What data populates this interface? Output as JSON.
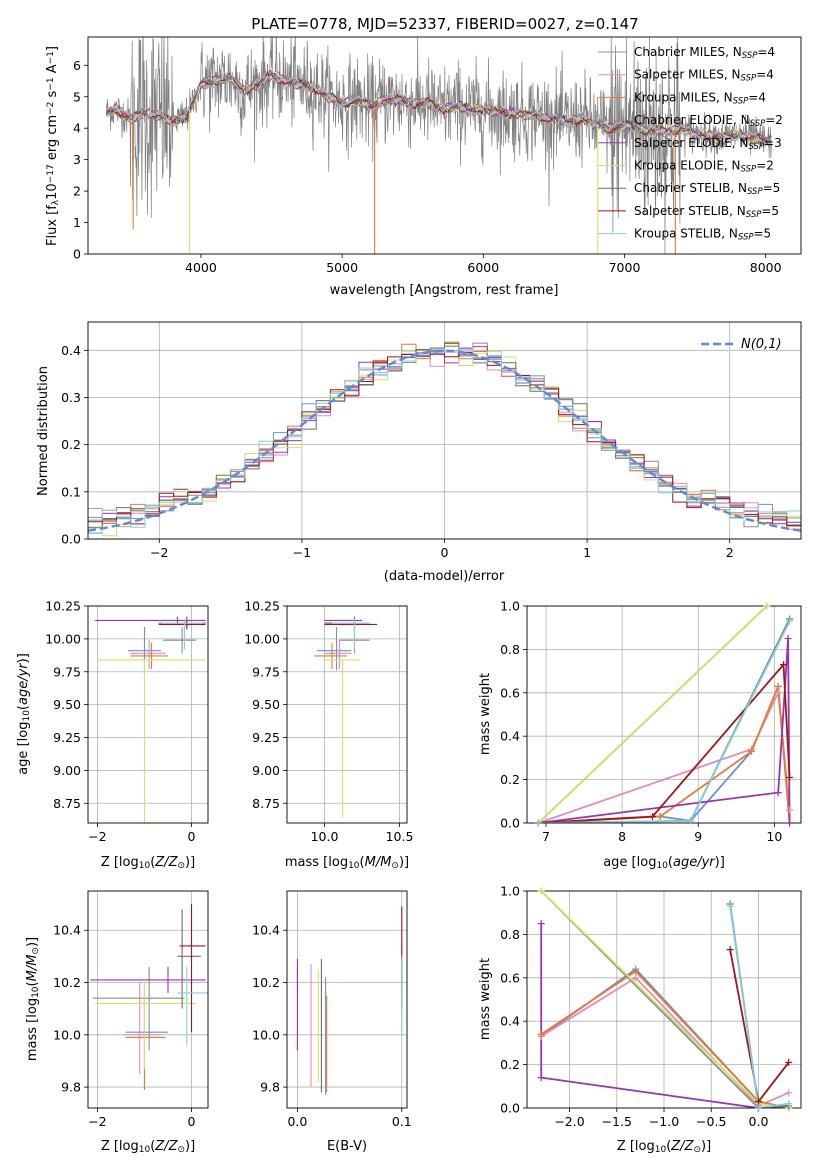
{
  "figure": {
    "title": "PLATE=0778, MJD=52337, FIBERID=0027, z=0.147"
  },
  "colors": {
    "Chabrier MILES": "#6a8fd8",
    "Salpeter MILES": "#e58aba",
    "Kroupa MILES": "#e67c2e",
    "Chabrier ELODIE": "#8c8c8c",
    "Salpeter ELODIE": "#9a33b3",
    "Kroupa ELODIE": "#c8e66a",
    "Chabrier STELIB": "#6e6e6e",
    "Salpeter STELIB": "#a11515",
    "Kroupa STELIB": "#7fd0dc",
    "data": "#808080",
    "normal": "#5b8ad6"
  },
  "chart_data": [
    {
      "type": "line",
      "panel": "spectrum",
      "title": "PLATE=0778, MJD=52337, FIBERID=0027, z=0.147",
      "xlabel": "wavelength [Angstrom, rest frame]",
      "ylabel": "Flux [f_λ10^-17 erg cm^-2 s^-1 A^-1]",
      "xlim": [
        3200,
        8250
      ],
      "ylim": [
        0,
        6.9
      ],
      "xticks": [
        4000,
        5000,
        6000,
        7000,
        8000
      ],
      "yticks": [
        0,
        1,
        2,
        3,
        4,
        5,
        6
      ],
      "legend": "right",
      "legend_entries": [
        {
          "model": "Chabrier MILES",
          "base": "Chabrier MILES, N",
          "sub": "SSP",
          "suffix": "=4"
        },
        {
          "model": "Salpeter MILES",
          "base": "Salpeter MILES, N",
          "sub": "SSP",
          "suffix": "=4"
        },
        {
          "model": "Kroupa MILES",
          "base": "Kroupa MILES, N",
          "sub": "SSP",
          "suffix": "=4"
        },
        {
          "model": "Chabrier ELODIE",
          "base": "Chabrier ELODIE, N",
          "sub": "SSP",
          "suffix": "=2"
        },
        {
          "model": "Salpeter ELODIE",
          "base": "Salpeter ELODIE, N",
          "sub": "SSP",
          "suffix": "=3"
        },
        {
          "model": "Kroupa ELODIE",
          "base": "Kroupa ELODIE, N",
          "sub": "SSP",
          "suffix": "=2"
        },
        {
          "model": "Chabrier STELIB",
          "base": "Chabrier STELIB, N",
          "sub": "SSP",
          "suffix": "=5"
        },
        {
          "model": "Salpeter STELIB",
          "base": "Salpeter STELIB, N",
          "sub": "SSP",
          "suffix": "=5"
        },
        {
          "model": "Kroupa STELIB",
          "base": "Kroupa STELIB, N",
          "sub": "SSP",
          "suffix": "=5"
        }
      ],
      "model_curve": {
        "x": [
          3330,
          3400,
          3500,
          3600,
          3700,
          3800,
          3900,
          4000,
          4100,
          4200,
          4300,
          4400,
          4500,
          4600,
          4700,
          4800,
          4900,
          5000,
          5100,
          5200,
          5300,
          5400,
          5500,
          5600,
          5700,
          5800,
          5900,
          6000,
          6100,
          6200,
          6300,
          6400,
          6500,
          6600,
          6700,
          6800,
          6900,
          7000,
          7100,
          7200,
          7300,
          7400,
          7500,
          7600,
          7700,
          7800,
          7900,
          8000
        ],
        "y": [
          4.5,
          4.6,
          4.3,
          4.5,
          4.4,
          4.2,
          4.4,
          5.4,
          5.5,
          5.6,
          5.2,
          5.4,
          5.7,
          5.5,
          5.4,
          5.3,
          5.0,
          4.8,
          4.9,
          4.7,
          4.9,
          4.9,
          4.8,
          4.8,
          4.6,
          4.7,
          4.6,
          4.6,
          4.5,
          4.5,
          4.4,
          4.4,
          4.3,
          4.2,
          4.3,
          4.1,
          4.0,
          4.1,
          4.0,
          3.9,
          3.9,
          4.0,
          3.8,
          3.8,
          3.7,
          3.8,
          3.7,
          3.6
        ]
      },
      "dips": [
        {
          "x": 3520,
          "y": 0.8,
          "model": "Kroupa MILES"
        },
        {
          "x": 3920,
          "y": 0.0,
          "model": "Kroupa ELODIE"
        },
        {
          "x": 5230,
          "y": 0.0,
          "model": "Kroupa MILES"
        },
        {
          "x": 6810,
          "y": 0.0,
          "model": "Kroupa ELODIE"
        },
        {
          "x": 7360,
          "y": 0.0,
          "model": "Kroupa MILES"
        }
      ]
    },
    {
      "type": "line",
      "panel": "residual-distribution",
      "xlabel": "(data-model)/error",
      "ylabel": "Normed distribution",
      "xlim": [
        -2.5,
        2.5
      ],
      "ylim": [
        0,
        0.46
      ],
      "xticks": [
        -2,
        -1,
        0,
        1,
        2
      ],
      "yticks": [
        0.0,
        0.1,
        0.2,
        0.3,
        0.4
      ],
      "legend": "top-right",
      "normal_label": "N(0,1)",
      "bin_width": 0.1,
      "reference_curve": "standard normal density"
    },
    {
      "type": "scatter",
      "panel": "age-vs-Z",
      "xlabel": "Z [log10(Z/Z⊙)]",
      "ylabel": "age [log10(age/yr)]",
      "xlim": [
        -2.2,
        0.35
      ],
      "ylim": [
        8.6,
        10.25
      ],
      "xticks": [
        -2,
        0
      ],
      "yticks": [
        8.75,
        9.0,
        9.25,
        9.5,
        9.75,
        10.0,
        10.25
      ],
      "points": [
        {
          "model": "Chabrier MILES",
          "x": -1.0,
          "y": 9.91,
          "xerr": [
            0.35,
            0.35
          ],
          "yerr": [
            0.15,
            0.18
          ]
        },
        {
          "model": "Salpeter MILES",
          "x": -0.9,
          "y": 9.89,
          "xerr": [
            0.4,
            0.35
          ],
          "yerr": [
            0.12,
            0.1
          ]
        },
        {
          "model": "Kroupa MILES",
          "x": -0.85,
          "y": 9.87,
          "xerr": [
            0.45,
            0.35
          ],
          "yerr": [
            0.1,
            0.1
          ]
        },
        {
          "model": "Chabrier ELODIE",
          "x": -0.2,
          "y": 9.99,
          "xerr": [
            0.4,
            0.3
          ],
          "yerr": [
            0.1,
            0.1
          ]
        },
        {
          "model": "Salpeter ELODIE",
          "x": -0.3,
          "y": 10.14,
          "xerr": [
            1.75,
            0.6
          ],
          "yerr": [
            0.03,
            0.03
          ]
        },
        {
          "model": "Kroupa ELODIE",
          "x": -1.0,
          "y": 9.84,
          "xerr": [
            1.0,
            1.3
          ],
          "yerr": [
            1.25,
            0.0
          ]
        },
        {
          "model": "Chabrier STELIB",
          "x": -0.1,
          "y": 10.12,
          "xerr": [
            0.6,
            0.4
          ],
          "yerr": [
            0.05,
            0.05
          ]
        },
        {
          "model": "Salpeter STELIB",
          "x": -0.1,
          "y": 10.11,
          "xerr": [
            0.6,
            0.4
          ],
          "yerr": [
            0.03,
            0.03
          ]
        },
        {
          "model": "Kroupa STELIB",
          "x": -0.15,
          "y": 10.12,
          "xerr": [
            0.5,
            0.4
          ],
          "yerr": [
            0.2,
            0.03
          ]
        }
      ]
    },
    {
      "type": "scatter",
      "panel": "age-vs-mass",
      "xlabel": "mass [log10(M/M⊙)]",
      "ylabel": "",
      "xlim": [
        9.75,
        10.55
      ],
      "ylim": [
        8.6,
        10.25
      ],
      "xticks": [
        10.0,
        10.5
      ],
      "yticks": [
        8.75,
        9.0,
        9.25,
        9.5,
        9.75,
        10.0,
        10.25
      ],
      "points": [
        {
          "model": "Chabrier MILES",
          "x": 10.08,
          "y": 9.91,
          "xerr": [
            0.13,
            0.1
          ],
          "yerr": [
            0.15,
            0.18
          ]
        },
        {
          "model": "Salpeter MILES",
          "x": 10.1,
          "y": 9.89,
          "xerr": [
            0.1,
            0.08
          ],
          "yerr": [
            0.12,
            0.1
          ]
        },
        {
          "model": "Kroupa MILES",
          "x": 10.05,
          "y": 9.87,
          "xerr": [
            0.12,
            0.1
          ],
          "yerr": [
            0.1,
            0.1
          ]
        },
        {
          "model": "Chabrier ELODIE",
          "x": 10.2,
          "y": 9.99,
          "xerr": [
            0.1,
            0.1
          ],
          "yerr": [
            0.1,
            0.1
          ]
        },
        {
          "model": "Salpeter ELODIE",
          "x": 10.2,
          "y": 10.14,
          "xerr": [
            0.2,
            0.05
          ],
          "yerr": [
            0.03,
            0.03
          ]
        },
        {
          "model": "Kroupa ELODIE",
          "x": 10.12,
          "y": 9.84,
          "xerr": [
            0.12,
            0.12
          ],
          "yerr": [
            1.2,
            0.0
          ]
        },
        {
          "model": "Chabrier STELIB",
          "x": 10.2,
          "y": 10.12,
          "xerr": [
            0.2,
            0.1
          ],
          "yerr": [
            0.05,
            0.05
          ]
        },
        {
          "model": "Salpeter STELIB",
          "x": 10.2,
          "y": 10.11,
          "xerr": [
            0.2,
            0.15
          ],
          "yerr": [
            0.03,
            0.03
          ]
        },
        {
          "model": "Kroupa STELIB",
          "x": 10.2,
          "y": 10.12,
          "xerr": [
            0.15,
            0.1
          ],
          "yerr": [
            0.2,
            0.03
          ]
        }
      ]
    },
    {
      "type": "line",
      "panel": "mass-weight-vs-age",
      "xlabel": "age [log10(age/yr)]",
      "ylabel": "mass weight",
      "xlim": [
        6.75,
        10.35
      ],
      "ylim": [
        0,
        1.0
      ],
      "xticks": [
        7,
        8,
        9,
        10
      ],
      "yticks": [
        0.0,
        0.2,
        0.4,
        0.6,
        0.8,
        1.0
      ],
      "series": [
        {
          "model": "Chabrier MILES",
          "x": [
            6.9,
            8.5,
            8.9,
            9.7,
            10.05,
            10.2
          ],
          "y": [
            0.0,
            0.03,
            0.01,
            0.33,
            0.63,
            0.0
          ]
        },
        {
          "model": "Salpeter MILES",
          "x": [
            6.9,
            9.7,
            10.05,
            10.2
          ],
          "y": [
            0.0,
            0.34,
            0.6,
            0.06
          ]
        },
        {
          "model": "Kroupa MILES",
          "x": [
            6.9,
            8.5,
            9.7,
            10.05,
            10.2
          ],
          "y": [
            0.0,
            0.03,
            0.33,
            0.63,
            0.0
          ]
        },
        {
          "model": "Chabrier ELODIE",
          "x": [
            6.9,
            9.9
          ],
          "y": [
            0.0,
            1.0
          ]
        },
        {
          "model": "Salpeter ELODIE",
          "x": [
            6.9,
            10.05,
            10.18,
            10.2
          ],
          "y": [
            0.0,
            0.14,
            0.85,
            0.0
          ]
        },
        {
          "model": "Kroupa ELODIE",
          "x": [
            6.9,
            9.9
          ],
          "y": [
            0.0,
            1.0
          ]
        },
        {
          "model": "Chabrier STELIB",
          "x": [
            6.9,
            8.9,
            10.2
          ],
          "y": [
            0.0,
            0.01,
            0.94
          ]
        },
        {
          "model": "Salpeter STELIB",
          "x": [
            6.9,
            8.4,
            10.12,
            10.2
          ],
          "y": [
            0.0,
            0.03,
            0.73,
            0.21
          ]
        },
        {
          "model": "Kroupa STELIB",
          "x": [
            6.9,
            8.9,
            10.2
          ],
          "y": [
            0.0,
            0.01,
            0.93
          ]
        }
      ]
    },
    {
      "type": "scatter",
      "panel": "mass-vs-Z",
      "xlabel": "Z [log10(Z/Z⊙)]",
      "ylabel": "mass [log10(M/M⊙)]",
      "xlim": [
        -2.2,
        0.35
      ],
      "ylim": [
        9.72,
        10.55
      ],
      "xticks": [
        -2,
        0
      ],
      "yticks": [
        9.8,
        10.0,
        10.2,
        10.4
      ],
      "points": [
        {
          "model": "Chabrier MILES",
          "x": -1.0,
          "y": 10.01,
          "xerr": [
            0.4,
            0.5
          ],
          "yerr": [
            0.22,
            0.19
          ]
        },
        {
          "model": "Salpeter MILES",
          "x": -1.1,
          "y": 10.0,
          "xerr": [
            0.35,
            0.45
          ],
          "yerr": [
            0.15,
            0.2
          ]
        },
        {
          "model": "Kroupa MILES",
          "x": -1.0,
          "y": 9.99,
          "xerr": [
            0.4,
            0.45
          ],
          "yerr": [
            0.2,
            0.15
          ]
        },
        {
          "model": "Chabrier ELODIE",
          "x": -0.9,
          "y": 10.14,
          "xerr": [
            1.2,
            0.75
          ],
          "yerr": [
            0.2,
            0.12
          ]
        },
        {
          "model": "Salpeter ELODIE",
          "x": -0.5,
          "y": 10.21,
          "xerr": [
            1.65,
            0.8
          ],
          "yerr": [
            0.05,
            0.05
          ]
        },
        {
          "model": "Kroupa ELODIE",
          "x": -1.0,
          "y": 10.12,
          "xerr": [
            1.05,
            1.1
          ],
          "yerr": [
            0.25,
            0.08
          ]
        },
        {
          "model": "Chabrier STELIB",
          "x": -0.2,
          "y": 10.3,
          "xerr": [
            0.1,
            0.4
          ],
          "yerr": [
            0.2,
            0.18
          ]
        },
        {
          "model": "Salpeter STELIB",
          "x": 0.0,
          "y": 10.34,
          "xerr": [
            0.25,
            0.3
          ],
          "yerr": [
            0.33,
            0.16
          ]
        },
        {
          "model": "Kroupa STELIB",
          "x": -0.1,
          "y": 10.16,
          "xerr": [
            0.2,
            0.45
          ],
          "yerr": [
            0.2,
            0.1
          ]
        }
      ]
    },
    {
      "type": "scatter",
      "panel": "mass-vs-EBV",
      "xlabel": "E(B-V)",
      "ylabel": "",
      "xlim": [
        -0.01,
        0.105
      ],
      "ylim": [
        9.72,
        10.55
      ],
      "xticks": [
        0.0,
        0.1
      ],
      "yticks": [
        9.8,
        10.0,
        10.2,
        10.4
      ],
      "points": [
        {
          "model": "Chabrier MILES",
          "x": 0.027,
          "y": 10.02,
          "yerr": [
            0.25,
            0.2
          ]
        },
        {
          "model": "Salpeter MILES",
          "x": 0.013,
          "y": 10.07,
          "yerr": [
            0.27,
            0.2
          ]
        },
        {
          "model": "Kroupa MILES",
          "x": 0.028,
          "y": 10.0,
          "yerr": [
            0.22,
            0.15
          ]
        },
        {
          "model": "Chabrier ELODIE",
          "x": 0.0,
          "y": 10.14,
          "yerr": [
            0.2,
            0.12
          ]
        },
        {
          "model": "Salpeter ELODIE",
          "x": 0.0,
          "y": 10.21,
          "yerr": [
            0.27,
            0.08
          ]
        },
        {
          "model": "Kroupa ELODIE",
          "x": 0.02,
          "y": 10.12,
          "yerr": [
            0.3,
            0.13
          ]
        },
        {
          "model": "Chabrier STELIB",
          "x": 0.023,
          "y": 10.02,
          "yerr": [
            0.24,
            0.27
          ]
        },
        {
          "model": "Salpeter STELIB",
          "x": 0.1,
          "y": 10.4,
          "yerr": [
            0.3,
            0.09
          ]
        },
        {
          "model": "Kroupa STELIB",
          "x": 0.1,
          "y": 10.2,
          "yerr": [
            0.2,
            0.1
          ]
        }
      ]
    },
    {
      "type": "line",
      "panel": "mass-weight-vs-Z",
      "xlabel": "Z [log10(Z/Z⊙)]",
      "ylabel": "mass weight",
      "xlim": [
        -2.45,
        0.45
      ],
      "ylim": [
        0,
        1.0
      ],
      "xticks": [
        -2.0,
        -1.5,
        -1.0,
        -0.5,
        0.0
      ],
      "yticks": [
        0.0,
        0.2,
        0.4,
        0.6,
        0.8,
        1.0
      ],
      "series": [
        {
          "model": "Chabrier MILES",
          "x": [
            -2.3,
            -1.3,
            0.0,
            0.32
          ],
          "y": [
            0.33,
            0.64,
            0.03,
            0.0
          ]
        },
        {
          "model": "Salpeter MILES",
          "x": [
            -2.3,
            -1.3,
            0.0,
            0.32
          ],
          "y": [
            0.33,
            0.6,
            0.01,
            0.07
          ]
        },
        {
          "model": "Kroupa MILES",
          "x": [
            -2.3,
            -1.3,
            0.0,
            0.32
          ],
          "y": [
            0.34,
            0.63,
            0.03,
            0.0
          ]
        },
        {
          "model": "Chabrier ELODIE",
          "x": [
            -2.3,
            0.0
          ],
          "y": [
            1.0,
            0.0
          ]
        },
        {
          "model": "Salpeter ELODIE",
          "x": [
            -2.3,
            -2.3,
            0.0
          ],
          "y": [
            0.85,
            0.14,
            0.0
          ]
        },
        {
          "model": "Kroupa ELODIE",
          "x": [
            -2.3,
            0.0,
            0.32
          ],
          "y": [
            1.0,
            0.02,
            0.0
          ]
        },
        {
          "model": "Chabrier STELIB",
          "x": [
            -0.3,
            0.0,
            0.32
          ],
          "y": [
            0.94,
            0.0,
            0.01
          ]
        },
        {
          "model": "Salpeter STELIB",
          "x": [
            -0.3,
            0.0,
            0.32
          ],
          "y": [
            0.73,
            0.03,
            0.21
          ]
        },
        {
          "model": "Kroupa STELIB",
          "x": [
            -0.3,
            0.0,
            0.32
          ],
          "y": [
            0.93,
            0.0,
            0.02
          ]
        }
      ]
    }
  ]
}
